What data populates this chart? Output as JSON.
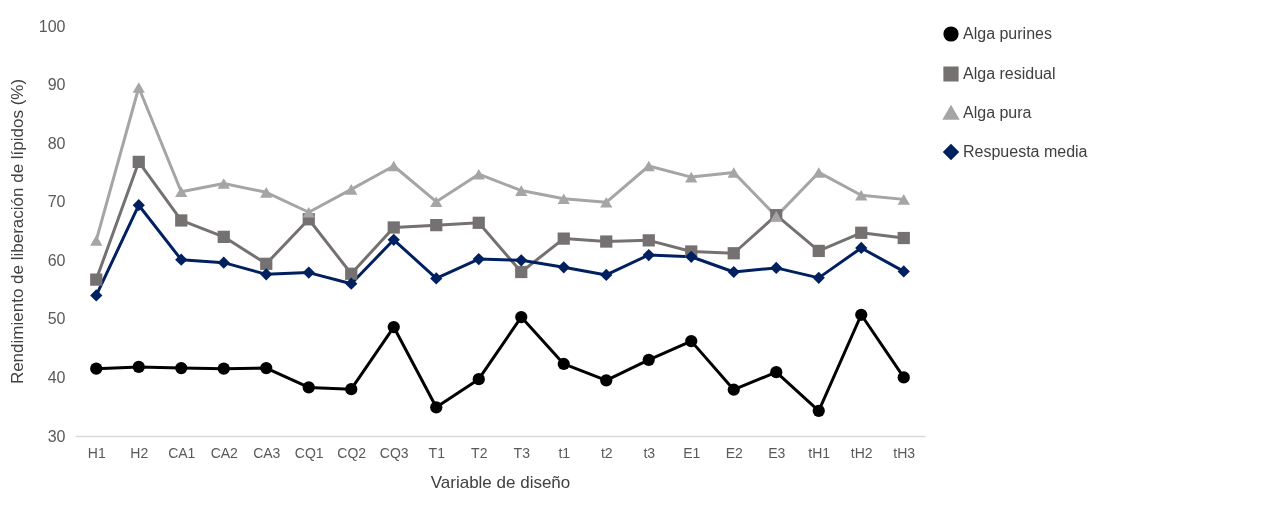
{
  "chart_data": {
    "type": "line",
    "xlabel": "Variable de diseño",
    "ylabel": "Rendimiento de liberación de lípidos (%)",
    "categories": [
      "H1",
      "H2",
      "CA1",
      "CA2",
      "CA3",
      "CQ1",
      "CQ2",
      "CQ3",
      "T1",
      "T2",
      "T3",
      "t1",
      "t2",
      "t3",
      "E1",
      "E2",
      "E3",
      "tH1",
      "tH2",
      "tH3"
    ],
    "series": [
      {
        "name": "Alga purines",
        "color": "#000000",
        "marker": "circle",
        "values": [
          41.5,
          41.8,
          41.6,
          41.5,
          41.6,
          38.3,
          38.0,
          48.6,
          34.9,
          39.7,
          50.3,
          42.3,
          39.5,
          43.0,
          46.2,
          37.9,
          40.9,
          34.3,
          50.7,
          40.0
        ]
      },
      {
        "name": "Alga residual",
        "color": "#767171",
        "marker": "square",
        "values": [
          56.7,
          76.8,
          66.8,
          64.0,
          59.4,
          67.0,
          57.7,
          65.6,
          66.0,
          66.4,
          58.0,
          63.7,
          63.2,
          63.4,
          61.5,
          61.2,
          67.7,
          61.6,
          64.7,
          63.8
        ]
      },
      {
        "name": "Alga pura",
        "color": "#a5a5a5",
        "marker": "triangle",
        "values": [
          63.4,
          89.5,
          71.7,
          73.1,
          71.6,
          68.2,
          72.1,
          76.1,
          70.0,
          74.7,
          71.9,
          70.5,
          69.9,
          76.1,
          74.2,
          75.0,
          67.5,
          75.0,
          71.1,
          70.4
        ]
      },
      {
        "name": "Respuesta media",
        "color": "#002060",
        "marker": "diamond",
        "values": [
          54.0,
          69.4,
          60.1,
          59.6,
          57.6,
          57.9,
          56.0,
          63.5,
          56.9,
          60.2,
          60.0,
          58.8,
          57.5,
          60.9,
          60.6,
          58.0,
          58.7,
          57.0,
          62.1,
          58.1
        ]
      }
    ],
    "ylim": [
      30,
      100
    ],
    "yticks": [
      30,
      40,
      50,
      60,
      70,
      80,
      90,
      100
    ],
    "legend": "right",
    "line_style": "solid"
  }
}
